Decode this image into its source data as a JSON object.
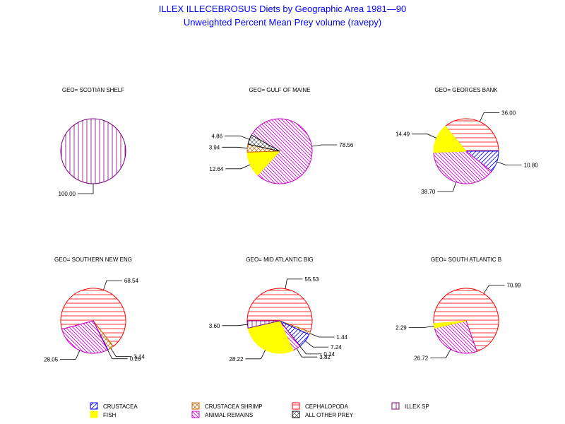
{
  "chart_data": {
    "type": "pie",
    "title": "ILLEX ILLECEBROSUS Diets by Geographic Area 1981—90",
    "subtitle": "Unweighted Percent Mean Prey volume (ravepy)",
    "categories": [
      {
        "key": "crustacea",
        "label": "CRUSTACEA",
        "color": "#0000ff",
        "pattern": "diag-up"
      },
      {
        "key": "fish",
        "label": "FISH",
        "color": "#ffff00",
        "pattern": "solid"
      },
      {
        "key": "crustacea_shrimp",
        "label": "CRUSTACEA SHRIMP",
        "color": "#cc6600",
        "pattern": "cross-hatch"
      },
      {
        "key": "animal_remains",
        "label": "ANIMAL REMAINS",
        "color": "#cc00cc",
        "pattern": "diag-down"
      },
      {
        "key": "cephalopoda",
        "label": "CEPHALOPODA",
        "color": "#ff0000",
        "pattern": "horizontal"
      },
      {
        "key": "all_other_prey",
        "label": "ALL OTHER PREY",
        "color": "#000000",
        "pattern": "diamond"
      },
      {
        "key": "illex_sp",
        "label": "ILLEX SP",
        "color": "#800080",
        "pattern": "vertical"
      }
    ],
    "pies": [
      {
        "label": "GEO= SCOTIAN SHELF",
        "slices": [
          {
            "category": "illex_sp",
            "value": 100.0,
            "text": "100.00"
          }
        ]
      },
      {
        "label": "GEO= GULF OF MAINE",
        "slices": [
          {
            "category": "animal_remains",
            "value": 78.56,
            "text": "78.56"
          },
          {
            "category": "fish",
            "value": 12.64,
            "text": "12.64"
          },
          {
            "category": "crustacea_shrimp",
            "value": 3.94,
            "text": "3.94"
          },
          {
            "category": "all_other_prey",
            "value": 4.86,
            "text": "4.86"
          }
        ]
      },
      {
        "label": "GEO= GEORGES BANK",
        "slices": [
          {
            "category": "cephalopoda",
            "value": 36.0,
            "text": "36.00"
          },
          {
            "category": "crustacea",
            "value": 10.8,
            "text": "10.80"
          },
          {
            "category": "animal_remains",
            "value": 38.7,
            "text": "38.70"
          },
          {
            "category": "fish",
            "value": 14.49,
            "text": "14.49"
          }
        ]
      },
      {
        "label": "GEO= SOUTHERN NEW ENG",
        "slices": [
          {
            "category": "cephalopoda",
            "value": 68.54,
            "text": "68.54"
          },
          {
            "category": "crustacea_shrimp",
            "value": 3.14,
            "text": "3.14"
          },
          {
            "category": "crustacea",
            "value": 0.26,
            "text": "0.26"
          },
          {
            "category": "animal_remains",
            "value": 28.05,
            "text": "28.05"
          }
        ]
      },
      {
        "label": "GEO= MID ATLANTIC BIG",
        "slices": [
          {
            "category": "cephalopoda",
            "value": 55.53,
            "text": "55.53"
          },
          {
            "category": "crustacea_shrimp",
            "value": 1.44,
            "text": "1.44"
          },
          {
            "category": "crustacea",
            "value": 7.24,
            "text": "7.24"
          },
          {
            "category": "all_other_prey",
            "value": 0.14,
            "text": "0.14"
          },
          {
            "category": "animal_remains",
            "value": 3.82,
            "text": "3.82"
          },
          {
            "category": "fish",
            "value": 28.22,
            "text": "28.22"
          },
          {
            "category": "illex_sp",
            "value": 3.6,
            "text": "3.60"
          }
        ]
      },
      {
        "label": "GEO= SOUTH ATLANTIC B",
        "slices": [
          {
            "category": "cephalopoda",
            "value": 70.99,
            "text": "70.99"
          },
          {
            "category": "animal_remains",
            "value": 26.72,
            "text": "26.72"
          },
          {
            "category": "fish",
            "value": 2.29,
            "text": "2.29"
          }
        ]
      }
    ],
    "legend_position": "bottom"
  }
}
